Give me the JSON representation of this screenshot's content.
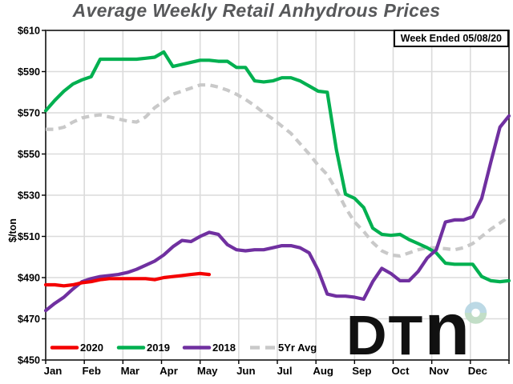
{
  "title": "Average Weekly Retail Anhydrous Prices",
  "badge": "Week Ended 05/08/20",
  "watermark": {
    "text": "DTn"
  },
  "chart_data": {
    "type": "line",
    "title": "Average Weekly Retail Anhydrous Prices",
    "ylabel": "$/ton",
    "ylim": [
      450,
      610
    ],
    "y_tick_step": 20,
    "y_tick_prefix": "$",
    "y_tick_labels": [
      "$450",
      "$470",
      "$490",
      "$510",
      "$530",
      "$550",
      "$570",
      "$590",
      "$610"
    ],
    "months": [
      "Jan",
      "Feb",
      "Mar",
      "Apr",
      "May",
      "Jun",
      "Jul",
      "Aug",
      "Sep",
      "Oct",
      "Nov",
      "Dec"
    ],
    "x_weeks": 52,
    "grid": true,
    "legend_position": "inside-bottom-left",
    "colors": {
      "grid": "#dbdbdb",
      "frame": "#404040",
      "axis_text": "#000000",
      "title_text": "#57585a",
      "watermark_gray": "#b1b1b1",
      "watermark_ring_blue": "#b7d7e4",
      "watermark_ring_green": "#bedcc3"
    },
    "series": [
      {
        "name": "2020",
        "color": "#f40000",
        "dash": "solid",
        "values": [
          486.5,
          486.5,
          486,
          486.5,
          487.5,
          488,
          489,
          489.5,
          489.5,
          489.5,
          489.5,
          489.5,
          489,
          490,
          490.5,
          491,
          491.5,
          492,
          491.5
        ]
      },
      {
        "name": "2019",
        "color": "#00b050",
        "dash": "solid",
        "values": [
          571,
          576,
          580.5,
          584,
          586,
          587.5,
          596,
          596,
          596,
          596,
          596,
          596.5,
          597,
          599.5,
          592.5,
          593.5,
          594.5,
          595.5,
          595.5,
          595,
          595,
          592,
          592,
          585.5,
          585,
          585.5,
          587,
          587,
          585.5,
          583,
          580.5,
          580,
          552,
          530.5,
          528.5,
          524,
          514,
          511,
          510.5,
          511,
          508.5,
          506.5,
          504.5,
          502,
          497,
          496.5,
          496.5,
          496.5,
          490.5,
          488.5,
          488,
          488.5
        ]
      },
      {
        "name": "2018",
        "color": "#7030a0",
        "dash": "solid",
        "values": [
          474,
          477.5,
          480.5,
          484.5,
          488,
          489.5,
          490.5,
          491,
          491.5,
          492.5,
          494,
          496,
          498,
          501,
          505,
          508,
          507.5,
          510,
          512,
          511,
          506,
          503.5,
          503,
          503.5,
          503.5,
          504.5,
          505.5,
          505.5,
          504.5,
          502,
          493.5,
          482,
          481,
          481,
          480.5,
          479.5,
          488,
          494.5,
          492,
          488.5,
          488.5,
          493,
          499.5,
          503.5,
          517,
          518,
          518,
          519.5,
          528.5,
          546,
          563,
          568.5
        ]
      },
      {
        "name": "5Yr Avg",
        "color": "#c9c9c9",
        "dash": "dashed",
        "values": [
          562,
          562,
          563,
          565.5,
          567.5,
          568.5,
          569,
          568,
          567,
          566,
          565.5,
          568,
          572.5,
          575.5,
          579,
          580.5,
          582,
          583.5,
          583.5,
          582.5,
          581,
          579,
          576.5,
          573.5,
          570,
          567,
          563.5,
          560,
          555,
          550,
          544.5,
          540,
          532.5,
          524,
          517,
          512.5,
          507,
          503,
          501,
          500.5,
          502,
          503.5,
          504.5,
          504.5,
          504,
          503.5,
          504.5,
          506.5,
          510,
          513.5,
          516.5,
          519.5
        ]
      }
    ]
  }
}
